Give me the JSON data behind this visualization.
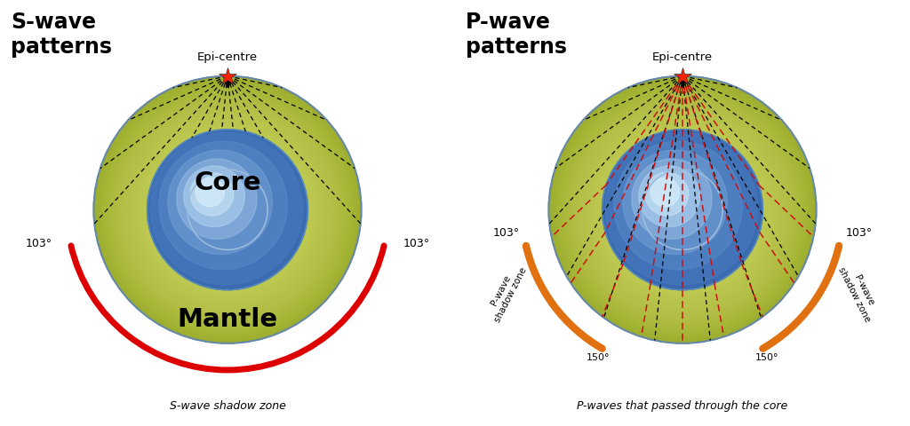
{
  "fig_width": 10.24,
  "fig_height": 4.8,
  "bg_color": "#ffffff",
  "mantle_color": "#b8c83a",
  "mantle_edge": "#7a9aaa",
  "core_color_dark": "#4a7fc0",
  "core_color_light": "#c0dff5",
  "shadow_s_color": "#dd0000",
  "shadow_p_color": "#e07010",
  "epi_star_color": "#ff2200",
  "wave_black": "#111111",
  "wave_red": "#cc1111",
  "left_title": "S-wave\npatterns",
  "right_title": "P-wave\npatterns",
  "epi_label": "Epi-centre",
  "core_label": "Core",
  "mantle_label": "Mantle",
  "shadow_s_label": "S-wave shadow zone",
  "shadow_p_label": "P-waves that passed through the core",
  "angle_103": "103°",
  "angle_150": "150°"
}
